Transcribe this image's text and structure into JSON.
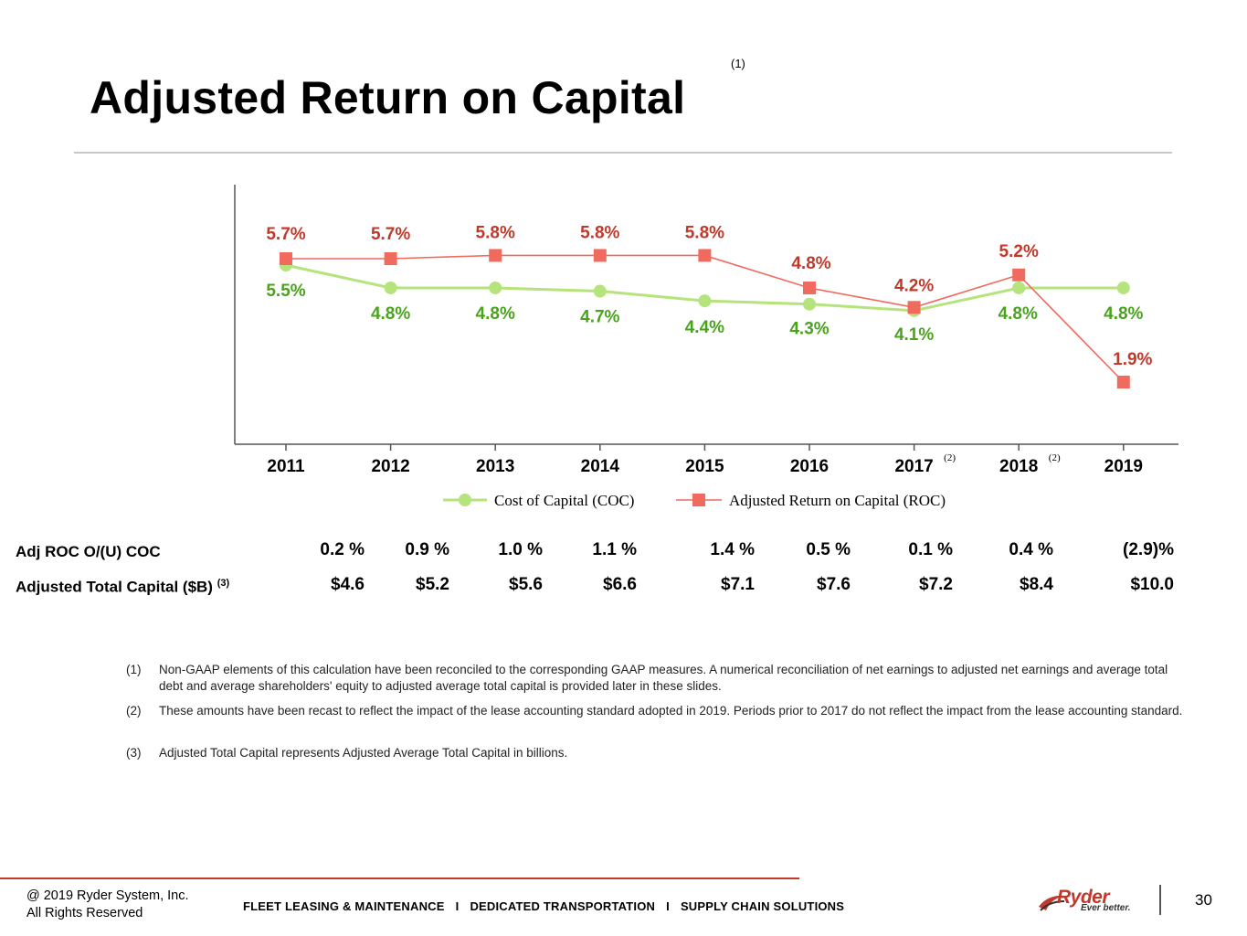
{
  "slide": {
    "title": "Adjusted Return on Capital",
    "title_note": "(1)"
  },
  "chart_data": {
    "type": "line",
    "categories": [
      "2011",
      "2012",
      "2013",
      "2014",
      "2015",
      "2016",
      "2017",
      "2018",
      "2019"
    ],
    "category_notes": [
      "",
      "",
      "",
      "",
      "",
      "",
      "(2)",
      "(2)",
      ""
    ],
    "series": [
      {
        "name": "Cost of Capital (COC)",
        "values": [
          5.5,
          4.8,
          4.8,
          4.7,
          4.4,
          4.3,
          4.1,
          4.8,
          4.8
        ],
        "labels": [
          "5.5%",
          "4.8%",
          "4.8%",
          "4.7%",
          "4.4%",
          "4.3%",
          "4.1%",
          "4.8%",
          "4.8%"
        ],
        "line_color": "#b5e37c",
        "label_color": "#4aa31d",
        "marker": "circle"
      },
      {
        "name": "Adjusted Return on Capital (ROC)",
        "values": [
          5.7,
          5.7,
          5.8,
          5.8,
          5.8,
          4.8,
          4.2,
          5.2,
          1.9
        ],
        "labels": [
          "5.7%",
          "5.7%",
          "5.8%",
          "5.8%",
          "5.8%",
          "4.8%",
          "4.2%",
          "5.2%",
          "1.9%"
        ],
        "line_color": "#f06a5e",
        "label_color": "#c0392b",
        "marker": "square"
      }
    ],
    "ylim": [
      0,
      7
    ],
    "grid": false,
    "legend_position": "bottom"
  },
  "table": {
    "rows": [
      {
        "label": "Adj ROC O/(U) COC",
        "note": "",
        "values": [
          "0.2 %",
          "0.9 %",
          "1.0 %",
          "1.1 %",
          "1.4 %",
          "0.5 %",
          "0.1 %",
          "0.4 %",
          "(2.9)%"
        ]
      },
      {
        "label": "Adjusted Total Capital ($B)",
        "note": "(3)",
        "values": [
          "$4.6",
          "$5.2",
          "$5.6",
          "$6.6",
          "$7.1",
          "$7.6",
          "$7.2",
          "$8.4",
          "$10.0"
        ]
      }
    ]
  },
  "footnotes": [
    {
      "num": "(1)",
      "text": "Non-GAAP elements of this calculation have been reconciled to the corresponding GAAP measures. A numerical reconciliation of net earnings to adjusted net earnings and average total debt and average shareholders' equity to adjusted average total capital is provided later in these slides."
    },
    {
      "num": "(2)",
      "text": "These amounts have been recast to reflect the impact of the lease accounting standard adopted in 2019.  Periods prior to 2017 do not reflect the impact from the lease accounting standard."
    },
    {
      "num": "(3)",
      "text": "Adjusted Total Capital represents Adjusted Average Total Capital in billions."
    }
  ],
  "footer": {
    "copyright_line1": "@ 2019 Ryder System, Inc.",
    "copyright_line2": "All Rights Reserved",
    "segment1": "FLEET LEASING & MAINTENANCE",
    "segment2": "DEDICATED TRANSPORTATION",
    "segment3": "SUPPLY CHAIN SOLUTIONS",
    "separator": "I",
    "logo_text": "Ryder",
    "logo_tagline": "Ever better.",
    "page_number": "30"
  }
}
